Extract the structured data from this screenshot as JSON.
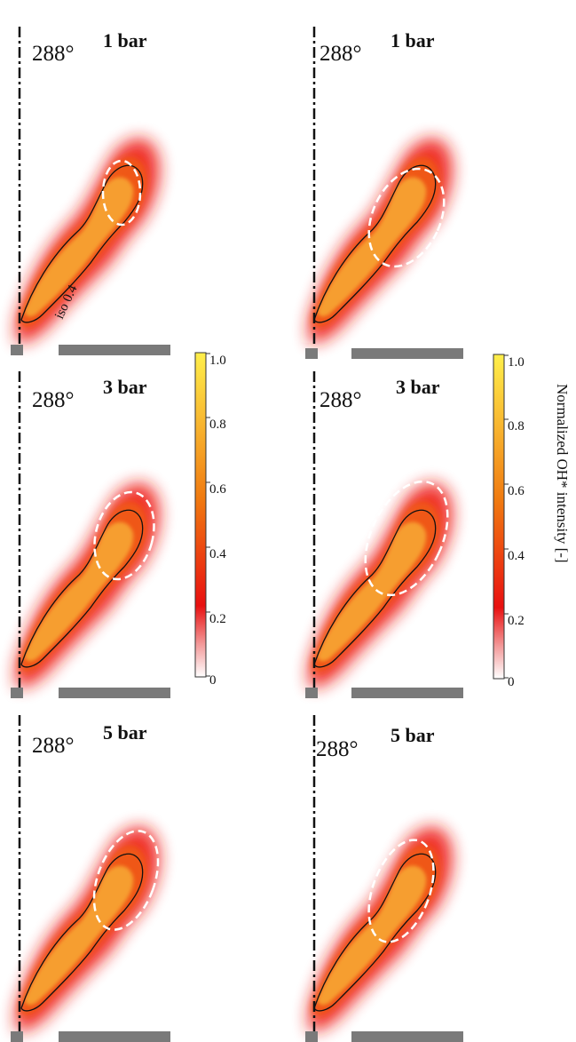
{
  "panels": [
    {
      "angle": "288°",
      "pressure": "1 bar"
    },
    {
      "angle": "288°",
      "pressure": "1 bar"
    },
    {
      "angle": "288°",
      "pressure": "3 bar"
    },
    {
      "angle": "288°",
      "pressure": "3 bar"
    },
    {
      "angle": "288°",
      "pressure": "5 bar"
    },
    {
      "angle": "288°",
      "pressure": "5 bar"
    }
  ],
  "iso_label": "iso 0.4",
  "colorbar": {
    "ticks": [
      "1.0",
      "0.8",
      "0.6",
      "0.4",
      "0.2",
      "0"
    ],
    "title": "Normalized OH* intensity [-]",
    "colors": {
      "high": "#ffef4a",
      "mid": "#f07a10",
      "low_mid": "#e81010",
      "low": "#ffffff"
    }
  }
}
